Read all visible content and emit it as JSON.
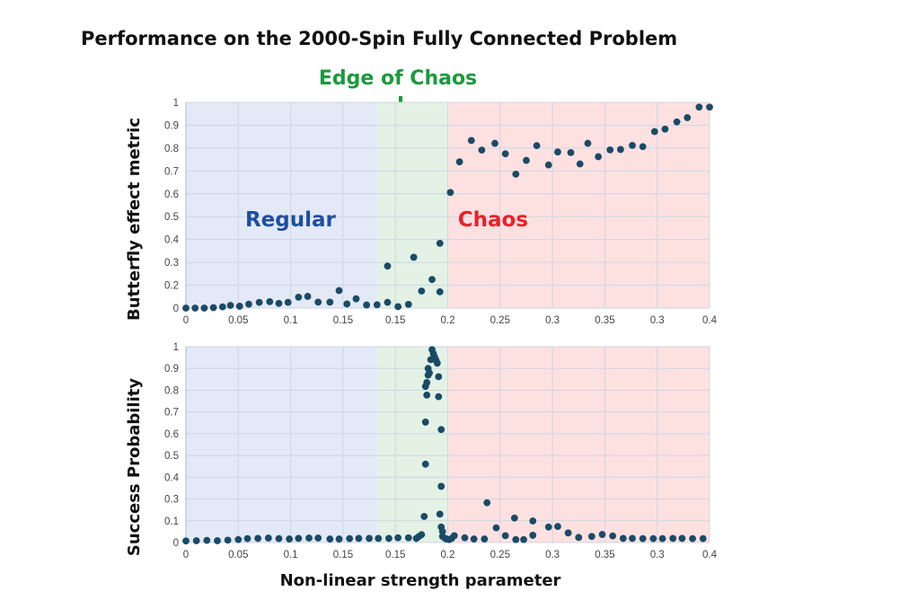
{
  "title": "Performance on the 2000-Spin Fully Connected Problem",
  "annotation": {
    "text": "Edge of Chaos",
    "color": "#1a9a3c",
    "arrow": "down-arrow"
  },
  "xlabel": "Non-linear strength parameter",
  "colors": {
    "dots": "#1b4a66",
    "regular": "#e3e9f6",
    "edge": "#e3f2e5",
    "chaos": "#fde1e1",
    "regular_text": "#1f4e9c",
    "chaos_text": "#e8202a",
    "grid": "#cfd6e2"
  },
  "chart_data": [
    {
      "type": "scatter",
      "ylabel": "Butterfly effect metric",
      "xlim": [
        0,
        0.4
      ],
      "ylim": [
        0,
        1
      ],
      "grid": true,
      "x_tick_labels": [
        "0",
        "0.05",
        "0.1",
        "0.15",
        "0.15",
        "0.2",
        "0.25",
        "0.3",
        "0.35",
        "0.3",
        "0.4"
      ],
      "y_tick_labels": [
        "0",
        "0.2",
        "0.3",
        "0.4",
        "0.5",
        "0.6",
        "0.7",
        "0.8",
        "0.9",
        "1"
      ],
      "regions": [
        {
          "label": "Regular",
          "from": 0,
          "to": 0.146
        },
        {
          "label": "",
          "from": 0.146,
          "to": 0.1995
        },
        {
          "label": "Chaos",
          "from": 0.1995,
          "to": 0.4
        }
      ],
      "points": [
        [
          0,
          0
        ],
        [
          0.007,
          0
        ],
        [
          0.014,
          0
        ],
        [
          0.021,
          0.002
        ],
        [
          0.028,
          0.006
        ],
        [
          0.034,
          0.013
        ],
        [
          0.041,
          0.009
        ],
        [
          0.048,
          0.019
        ],
        [
          0.056,
          0.028
        ],
        [
          0.064,
          0.031
        ],
        [
          0.071,
          0.023
        ],
        [
          0.078,
          0.028
        ],
        [
          0.086,
          0.053
        ],
        [
          0.093,
          0.057
        ],
        [
          0.101,
          0.029
        ],
        [
          0.11,
          0.029
        ],
        [
          0.117,
          0.085
        ],
        [
          0.123,
          0.02
        ],
        [
          0.13,
          0.045
        ],
        [
          0.138,
          0.015
        ],
        [
          0.146,
          0.016
        ],
        [
          0.154,
          0.028
        ],
        [
          0.154,
          0.204
        ],
        [
          0.162,
          0.007
        ],
        [
          0.17,
          0.018
        ],
        [
          0.174,
          0.247
        ],
        [
          0.18,
          0.083
        ],
        [
          0.188,
          0.139
        ],
        [
          0.194,
          0.315
        ],
        [
          0.194,
          0.079
        ],
        [
          0.202,
          0.562
        ],
        [
          0.209,
          0.711
        ],
        [
          0.218,
          0.815
        ],
        [
          0.226,
          0.768
        ],
        [
          0.236,
          0.801
        ],
        [
          0.244,
          0.75
        ],
        [
          0.252,
          0.651
        ],
        [
          0.26,
          0.718
        ],
        [
          0.268,
          0.79
        ],
        [
          0.277,
          0.696
        ],
        [
          0.284,
          0.759
        ],
        [
          0.294,
          0.756
        ],
        [
          0.301,
          0.701
        ],
        [
          0.307,
          0.801
        ],
        [
          0.315,
          0.736
        ],
        [
          0.324,
          0.769
        ],
        [
          0.332,
          0.771
        ],
        [
          0.341,
          0.791
        ],
        [
          0.349,
          0.785
        ],
        [
          0.358,
          0.858
        ],
        [
          0.366,
          0.87
        ],
        [
          0.375,
          0.905
        ],
        [
          0.383,
          0.926
        ],
        [
          0.392,
          0.977
        ],
        [
          0.4,
          0.977
        ]
      ]
    },
    {
      "type": "scatter",
      "ylabel": "Success Probability",
      "xlim": [
        0,
        0.4
      ],
      "ylim": [
        0,
        1
      ],
      "grid": true,
      "x_tick_labels": [
        "0",
        "0.05",
        "0.1",
        "0.15",
        "0.15",
        "0.2",
        "0.25",
        "0.3",
        "0.35",
        "0.3",
        "0.4"
      ],
      "y_tick_labels": [
        "0",
        "0.1",
        "0.3",
        "0.4",
        "0.5",
        "0.6",
        "0.7",
        "0.8",
        "0.9",
        "1"
      ],
      "y_tick_values": [
        0,
        0.1,
        0.3,
        0.4,
        0.5,
        0.6,
        0.7,
        0.8,
        0.9,
        1
      ],
      "regions": [
        {
          "label": "",
          "from": 0,
          "to": 0.146
        },
        {
          "label": "",
          "from": 0.146,
          "to": 0.1995
        },
        {
          "label": "",
          "from": 0.1995,
          "to": 0.4
        }
      ],
      "points": [
        [
          0,
          0.008
        ],
        [
          0.008,
          0.009
        ],
        [
          0.016,
          0.011
        ],
        [
          0.024,
          0.009
        ],
        [
          0.032,
          0.012
        ],
        [
          0.04,
          0.015
        ],
        [
          0.047,
          0.02
        ],
        [
          0.055,
          0.021
        ],
        [
          0.063,
          0.023
        ],
        [
          0.071,
          0.02
        ],
        [
          0.079,
          0.018
        ],
        [
          0.086,
          0.021
        ],
        [
          0.094,
          0.023
        ],
        [
          0.101,
          0.023
        ],
        [
          0.11,
          0.018
        ],
        [
          0.117,
          0.018
        ],
        [
          0.125,
          0.02
        ],
        [
          0.132,
          0.021
        ],
        [
          0.14,
          0.021
        ],
        [
          0.147,
          0.021
        ],
        [
          0.155,
          0.021
        ],
        [
          0.162,
          0.024
        ],
        [
          0.17,
          0.024
        ],
        [
          0.176,
          0.021
        ],
        [
          0.178,
          0.031
        ],
        [
          0.18,
          0.04
        ],
        [
          0.182,
          0.133
        ],
        [
          0.183,
          0.615
        ],
        [
          0.183,
          0.4
        ],
        [
          0.184,
          0.753
        ],
        [
          0.183,
          0.797
        ],
        [
          0.184,
          0.817
        ],
        [
          0.185,
          0.855
        ],
        [
          0.185,
          0.889
        ],
        [
          0.186,
          0.866
        ],
        [
          0.187,
          0.934
        ],
        [
          0.188,
          0.985
        ],
        [
          0.189,
          0.965
        ],
        [
          0.19,
          0.947
        ],
        [
          0.191,
          0.931
        ],
        [
          0.192,
          0.916
        ],
        [
          0.193,
          0.847
        ],
        [
          0.193,
          0.745
        ],
        [
          0.194,
          0.145
        ],
        [
          0.195,
          0.287
        ],
        [
          0.195,
          0.577
        ],
        [
          0.195,
          0.079
        ],
        [
          0.196,
          0.056
        ],
        [
          0.196,
          0.031
        ],
        [
          0.198,
          0.021
        ],
        [
          0.199,
          0.018
        ],
        [
          0.201,
          0.015
        ],
        [
          0.203,
          0.021
        ],
        [
          0.205,
          0.035
        ],
        [
          0.213,
          0.024
        ],
        [
          0.22,
          0.018
        ],
        [
          0.228,
          0.018
        ],
        [
          0.23,
          0.203
        ],
        [
          0.237,
          0.075
        ],
        [
          0.244,
          0.035
        ],
        [
          0.251,
          0.125
        ],
        [
          0.252,
          0.015
        ],
        [
          0.258,
          0.015
        ],
        [
          0.265,
          0.037
        ],
        [
          0.265,
          0.11
        ],
        [
          0.277,
          0.079
        ],
        [
          0.284,
          0.082
        ],
        [
          0.292,
          0.049
        ],
        [
          0.3,
          0.026
        ],
        [
          0.31,
          0.031
        ],
        [
          0.318,
          0.041
        ],
        [
          0.326,
          0.034
        ],
        [
          0.334,
          0.021
        ],
        [
          0.341,
          0.021
        ],
        [
          0.349,
          0.02
        ],
        [
          0.357,
          0.02
        ],
        [
          0.364,
          0.02
        ],
        [
          0.372,
          0.021
        ],
        [
          0.379,
          0.021
        ],
        [
          0.387,
          0.02
        ],
        [
          0.395,
          0.02
        ]
      ]
    }
  ]
}
